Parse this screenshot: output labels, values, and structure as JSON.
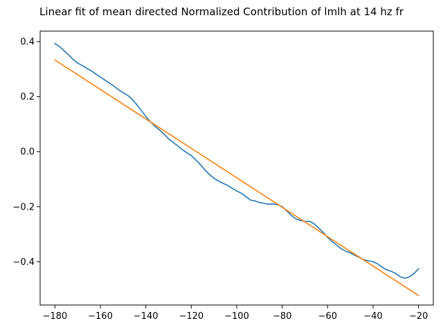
{
  "chart_data": {
    "type": "line",
    "title": "Linear fit of mean directed Normalized Contribution of lmlh at 14 hz fr",
    "xlabel": "",
    "ylabel": "",
    "xlim": [
      -186.5,
      -13.5
    ],
    "ylim": [
      -0.5575,
      0.438
    ],
    "xticks": [
      -180,
      -160,
      -140,
      -120,
      -100,
      -80,
      -60,
      -40,
      -20
    ],
    "yticks": [
      -0.4,
      -0.2,
      0.0,
      0.2,
      0.4
    ],
    "xtick_labels": [
      "−180",
      "−160",
      "−140",
      "−120",
      "−100",
      "−80",
      "−60",
      "−40",
      "−20"
    ],
    "ytick_labels": [
      "−0.4",
      "−0.2",
      "0.0",
      "0.2",
      "0.4"
    ],
    "grid": false,
    "legend": "none",
    "series": [
      {
        "color": "#1f77b4",
        "x": [
          -180,
          -178,
          -176,
          -174,
          -172,
          -170,
          -168,
          -166,
          -164,
          -162,
          -160,
          -158,
          -156,
          -154,
          -152,
          -150,
          -148,
          -146,
          -144,
          -142,
          -140,
          -138,
          -136,
          -134,
          -132,
          -130,
          -128,
          -126,
          -124,
          -122,
          -120,
          -118,
          -116,
          -114,
          -112,
          -110,
          -108,
          -106,
          -104,
          -102,
          -100,
          -98,
          -96,
          -94,
          -92,
          -90,
          -88,
          -86,
          -84,
          -82,
          -80,
          -78,
          -76,
          -74,
          -72,
          -70,
          -68,
          -66,
          -64,
          -62,
          -60,
          -58,
          -56,
          -54,
          -52,
          -50,
          -48,
          -46,
          -44,
          -42,
          -40,
          -38,
          -36,
          -34,
          -32,
          -30,
          -28,
          -26,
          -24,
          -22,
          -20
        ],
        "values": [
          0.393,
          0.382,
          0.367,
          0.352,
          0.335,
          0.322,
          0.313,
          0.303,
          0.294,
          0.282,
          0.271,
          0.26,
          0.249,
          0.238,
          0.225,
          0.214,
          0.205,
          0.19,
          0.171,
          0.15,
          0.128,
          0.109,
          0.092,
          0.079,
          0.064,
          0.047,
          0.034,
          0.021,
          0.008,
          -0.004,
          -0.014,
          -0.03,
          -0.047,
          -0.067,
          -0.083,
          -0.097,
          -0.107,
          -0.115,
          -0.123,
          -0.133,
          -0.143,
          -0.151,
          -0.163,
          -0.176,
          -0.179,
          -0.185,
          -0.188,
          -0.191,
          -0.19,
          -0.193,
          -0.2,
          -0.215,
          -0.232,
          -0.244,
          -0.25,
          -0.254,
          -0.253,
          -0.262,
          -0.277,
          -0.293,
          -0.312,
          -0.327,
          -0.34,
          -0.353,
          -0.362,
          -0.368,
          -0.377,
          -0.385,
          -0.393,
          -0.397,
          -0.4,
          -0.408,
          -0.42,
          -0.43,
          -0.435,
          -0.443,
          -0.455,
          -0.46,
          -0.455,
          -0.443,
          -0.426
        ]
      },
      {
        "color": "#ff7f0e",
        "x": [
          -180,
          -20
        ],
        "values": [
          0.333,
          -0.523
        ]
      }
    ]
  }
}
